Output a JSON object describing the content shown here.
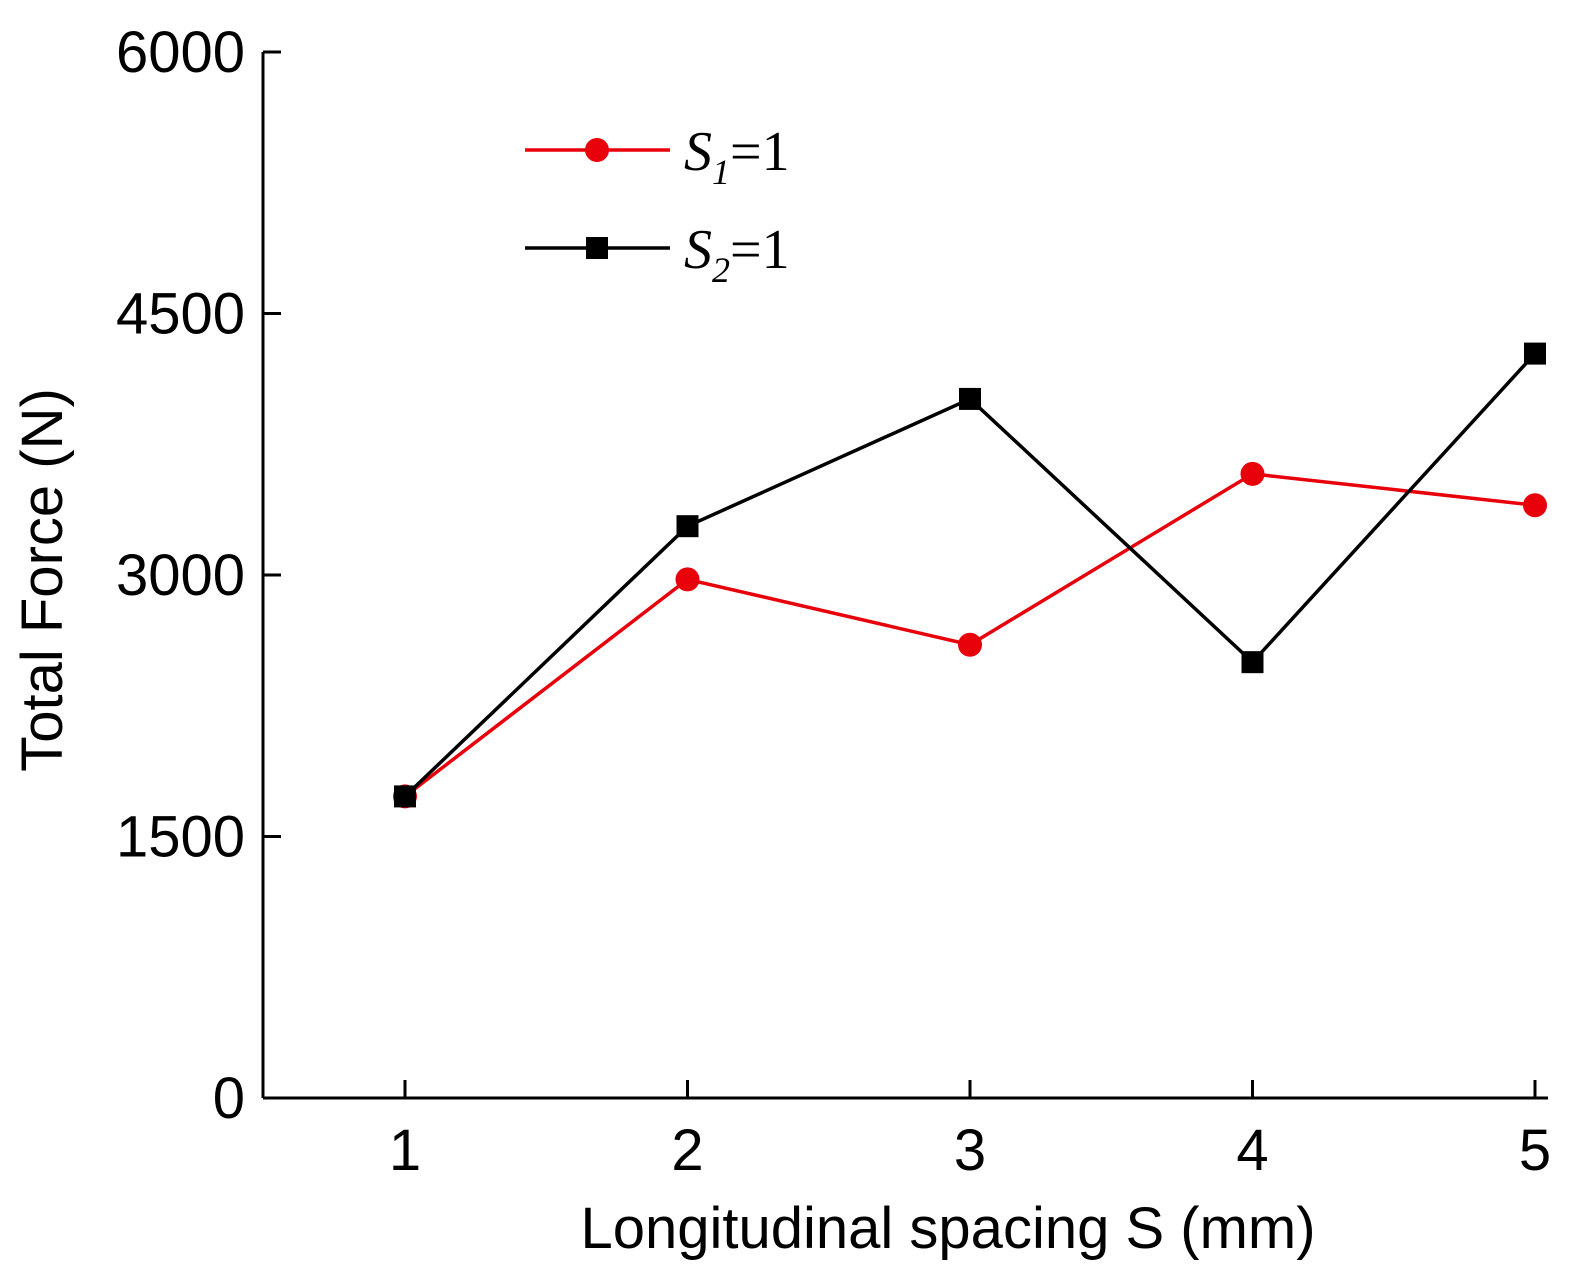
{
  "chart_data": {
    "type": "line",
    "title": "",
    "xlabel": "Longitudinal spacing S (mm)",
    "ylabel": "Total Force (N)",
    "x": [
      1,
      2,
      3,
      4,
      5
    ],
    "xticks": [
      "1",
      "2",
      "3",
      "4",
      "5"
    ],
    "yticks": [
      "0",
      "1500",
      "3000",
      "4500",
      "6000"
    ],
    "ytick_values": [
      0,
      1500,
      3000,
      4500,
      6000
    ],
    "xlim": [
      0.5,
      5
    ],
    "ylim": [
      0,
      6000
    ],
    "grid": false,
    "legend_position": "top-center",
    "series": [
      {
        "name": "S1=1",
        "legend_main": "S",
        "legend_sub": "1",
        "legend_rest": "=1",
        "marker": "circle",
        "color": "#e8000b",
        "values": [
          1730,
          2975,
          2600,
          3580,
          3400
        ]
      },
      {
        "name": "S2=1",
        "legend_main": "S",
        "legend_sub": "2",
        "legend_rest": "=1",
        "marker": "square",
        "color": "#000000",
        "values": [
          1730,
          3280,
          4010,
          2500,
          4270
        ]
      }
    ]
  }
}
